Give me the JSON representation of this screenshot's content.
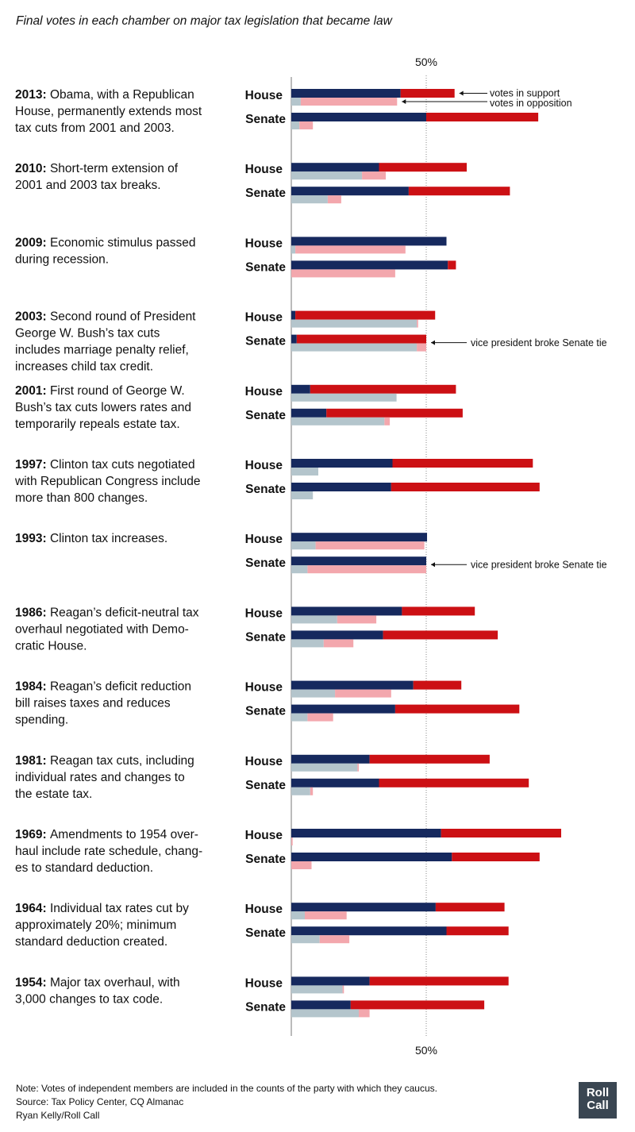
{
  "title": "Final votes in each chamber on major tax legislation that became law",
  "axis_label_top": "50%",
  "axis_label_bottom": "50%",
  "annotations": {
    "support": "votes in support",
    "opposition": "votes in opposition",
    "tie": "vice president broke Senate tie"
  },
  "notes": {
    "note": "Note: Votes of independent members are included in the counts of the party with which they caucus.",
    "source": "Source: Tax Policy Center, CQ Almanac",
    "credit": "Ryan Kelly/Roll Call"
  },
  "logo": {
    "line1": "Roll",
    "line2": "Call"
  },
  "colors": {
    "dem_support": "#16295e",
    "rep_support": "#cc1014",
    "dem_oppose": "#b4c5cc",
    "rep_oppose": "#f3a7ad",
    "reference_line": "#888888"
  },
  "chart_data": {
    "type": "bar",
    "orientation": "horizontal stacked",
    "reference_line": 50,
    "series_note": "Values are percent of chamber membership: dem_support + rep_support = votes in support; dem_oppose + rep_oppose = votes in opposition",
    "groups": [
      {
        "year": "2013:",
        "desc": "Obama, with a Republican House, permanently extends most tax cuts from 2001 and 2003.",
        "desc_lines": [
          "Obama, with a Republican",
          "House, permanently extends most",
          "tax cuts from 2001 and 2003."
        ],
        "house": {
          "dem_support": 40.5,
          "rep_support": 20,
          "dem_oppose": 3.5,
          "rep_oppose": 35.7
        },
        "senate": {
          "dem_support": 50,
          "rep_support": 41.5,
          "dem_oppose": 3,
          "rep_oppose": 5
        },
        "senate_tie": false,
        "labels": true
      },
      {
        "year": "2010:",
        "desc": "Short-term extension of 2001 and 2003 tax breaks.",
        "desc_lines": [
          "Short-term extension of",
          "2001 and 2003 tax breaks."
        ],
        "house": {
          "dem_support": 32.5,
          "rep_support": 32.5,
          "dem_oppose": 26.2,
          "rep_oppose": 8.8
        },
        "senate": {
          "dem_support": 43.5,
          "rep_support": 37.5,
          "dem_oppose": 13.5,
          "rep_oppose": 5
        },
        "senate_tie": false
      },
      {
        "year": "2009:",
        "desc": "Economic stimulus passed during recession.",
        "desc_lines": [
          "Economic stimulus passed",
          "during recession."
        ],
        "house": {
          "dem_support": 57.5,
          "rep_support": 0,
          "dem_oppose": 1.5,
          "rep_oppose": 40.8
        },
        "senate": {
          "dem_support": 58,
          "rep_support": 3,
          "dem_oppose": 0,
          "rep_oppose": 38.5
        },
        "senate_tie": false
      },
      {
        "year": "2003:",
        "desc": "Second round of President George W. Bush's tax cuts includes marriage penalty relief, increases child tax credit.",
        "desc_lines": [
          "Second round of President",
          "George W. Bush’s tax cuts",
          "includes marriage penalty relief,",
          "increases child tax credit."
        ],
        "house": {
          "dem_support": 1.5,
          "rep_support": 51.8,
          "dem_oppose": 46.5,
          "rep_oppose": 0.5
        },
        "senate": {
          "dem_support": 2,
          "rep_support": 48,
          "dem_oppose": 46.5,
          "rep_oppose": 3.5
        },
        "senate_tie": true
      },
      {
        "year": "2001:",
        "desc": "First round of George W. Bush's tax cuts lowers rates and temporarily repeals estate tax.",
        "desc_lines": [
          "First round of George W.",
          "Bush’s tax cuts lowers rates and",
          "temporarily repeals estate tax."
        ],
        "house": {
          "dem_support": 7,
          "rep_support": 54,
          "dem_oppose": 39,
          "rep_oppose": 0
        },
        "senate": {
          "dem_support": 13,
          "rep_support": 50.5,
          "dem_oppose": 34.5,
          "rep_oppose": 2
        },
        "senate_tie": false
      },
      {
        "year": "1997:",
        "desc": "Clinton tax cuts negotiated with Republican Congress include more than 800 changes.",
        "desc_lines": [
          "Clinton tax cuts negotiated",
          "with Republican Congress include",
          "more than 800 changes."
        ],
        "house": {
          "dem_support": 37.5,
          "rep_support": 52,
          "dem_oppose": 10,
          "rep_oppose": 0
        },
        "senate": {
          "dem_support": 37,
          "rep_support": 55,
          "dem_oppose": 8,
          "rep_oppose": 0
        },
        "senate_tie": false
      },
      {
        "year": "1993:",
        "desc": "Clinton tax increases.",
        "desc_lines": [
          "Clinton tax increases."
        ],
        "house": {
          "dem_support": 50.3,
          "rep_support": 0,
          "dem_oppose": 9,
          "rep_oppose": 40.3
        },
        "senate": {
          "dem_support": 50,
          "rep_support": 0,
          "dem_oppose": 6,
          "rep_oppose": 44
        },
        "senate_tie": true
      },
      {
        "year": "1986:",
        "desc": "Reagan's deficit-neutral tax overhaul negotiated with Democratic House.",
        "desc_lines": [
          "Reagan’s deficit-neutral tax",
          "overhaul negotiated with Demo-",
          "cratic House."
        ],
        "house": {
          "dem_support": 41,
          "rep_support": 27,
          "dem_oppose": 17,
          "rep_oppose": 14.5
        },
        "senate": {
          "dem_support": 34,
          "rep_support": 42.5,
          "dem_oppose": 12,
          "rep_oppose": 11
        },
        "senate_tie": false
      },
      {
        "year": "1984:",
        "desc": "Reagan's deficit reduction bill raises taxes and reduces spending.",
        "desc_lines": [
          "Reagan’s deficit reduction",
          "bill raises taxes and reduces",
          "spending."
        ],
        "house": {
          "dem_support": 45.2,
          "rep_support": 17.8,
          "dem_oppose": 16.2,
          "rep_oppose": 20.8
        },
        "senate": {
          "dem_support": 38.5,
          "rep_support": 46,
          "dem_oppose": 6,
          "rep_oppose": 9.5
        },
        "senate_tie": false
      },
      {
        "year": "1981:",
        "desc": "Reagan tax cuts, including individual rates and changes to the estate tax.",
        "desc_lines": [
          "Reagan tax cuts, including",
          "individual rates and changes to",
          "the estate tax."
        ],
        "house": {
          "dem_support": 29,
          "rep_support": 44.5,
          "dem_oppose": 24.5,
          "rep_oppose": 0.5
        },
        "senate": {
          "dem_support": 32.5,
          "rep_support": 55.5,
          "dem_oppose": 7,
          "rep_oppose": 1
        },
        "senate_tie": false
      },
      {
        "year": "1969:",
        "desc": "Amendments to 1954 overhaul include rate schedule, changes to standard deduction.",
        "desc_lines": [
          "Amendments to 1954 over-",
          "haul include rate schedule, chang-",
          "es to standard deduction."
        ],
        "house": {
          "dem_support": 55.5,
          "rep_support": 44.5,
          "dem_oppose": 0,
          "rep_oppose": 0.5
        },
        "senate": {
          "dem_support": 59.5,
          "rep_support": 32.5,
          "dem_oppose": 0,
          "rep_oppose": 7.5
        },
        "senate_tie": false
      },
      {
        "year": "1964:",
        "desc": "Individual tax rates cut by approximately 20%; minimum standard deduction created.",
        "desc_lines": [
          "Individual tax rates cut by",
          "approximately 20%; minimum",
          "standard deduction created."
        ],
        "house": {
          "dem_support": 53.5,
          "rep_support": 25.5,
          "dem_oppose": 5,
          "rep_oppose": 15.5
        },
        "senate": {
          "dem_support": 57.5,
          "rep_support": 23,
          "dem_oppose": 10.5,
          "rep_oppose": 11
        },
        "senate_tie": false
      },
      {
        "year": "1954:",
        "desc": "Major tax overhaul, with 3,000 changes to tax code.",
        "desc_lines": [
          "Major tax overhaul, with",
          "3,000 changes to tax code."
        ],
        "house": {
          "dem_support": 29,
          "rep_support": 51.5,
          "dem_oppose": 19,
          "rep_oppose": 0.5
        },
        "senate": {
          "dem_support": 22,
          "rep_support": 49.5,
          "dem_oppose": 25,
          "rep_oppose": 4
        },
        "senate_tie": false
      }
    ],
    "chamber_labels": {
      "house": "House",
      "senate": "Senate"
    }
  }
}
